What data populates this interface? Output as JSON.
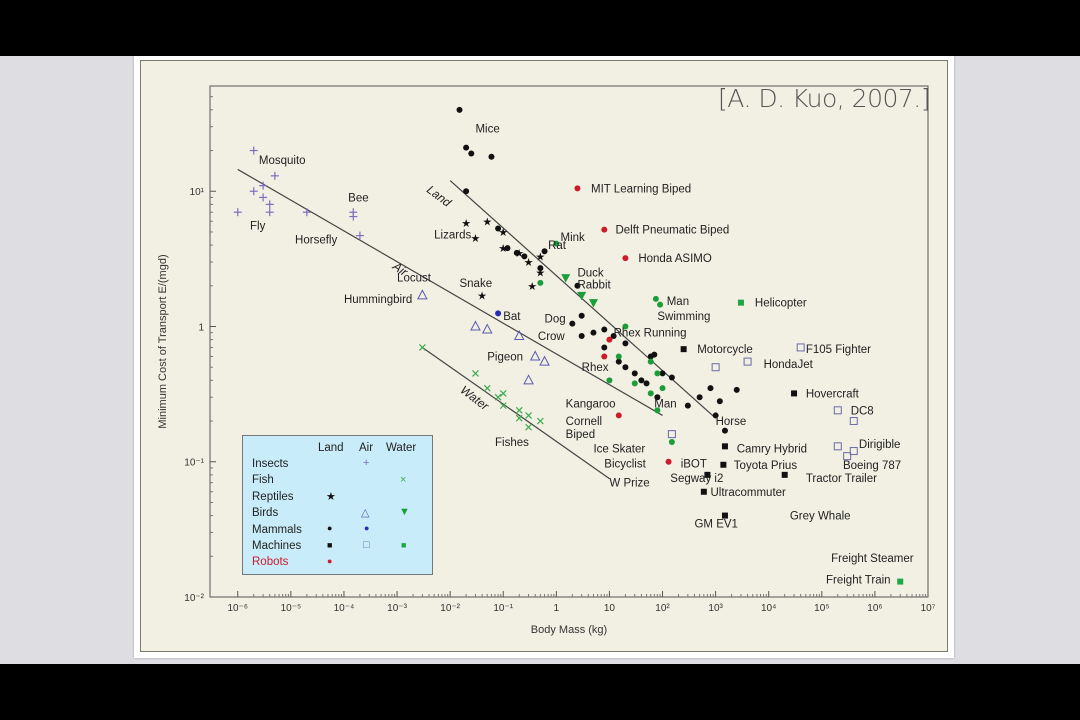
{
  "citation": "[A. D. Kuo, 2007.]",
  "chart_data": {
    "type": "scatter",
    "xlabel": "Body Mass (kg)",
    "ylabel": "Minimum Cost of Transport E/(mgd)",
    "xscale": "log",
    "yscale": "log",
    "xlim": [
      3e-07,
      10000000.0
    ],
    "ylim": [
      0.01,
      60
    ],
    "x_tick_labels": [
      "10⁻⁶",
      "10⁻⁵",
      "10⁻⁴",
      "10⁻³",
      "10⁻²",
      "10⁻¹",
      "1",
      "10",
      "10²",
      "10³",
      "10⁴",
      "10⁵",
      "10⁶",
      "10⁷"
    ],
    "x_tick_values": [
      1e-06,
      1e-05,
      0.0001,
      0.001,
      0.01,
      0.1,
      1,
      10,
      100,
      1000,
      10000.0,
      100000.0,
      1000000.0,
      10000000.0
    ],
    "y_tick_labels": [
      "10⁻²",
      "10⁻¹",
      "1",
      "10¹"
    ],
    "y_tick_values": [
      0.01,
      0.1,
      1,
      10
    ],
    "legend": {
      "headers": [
        "Land",
        "Air",
        "Water"
      ],
      "rows": [
        {
          "label": "Insects",
          "land": "",
          "air": "+",
          "water": ""
        },
        {
          "label": "Fish",
          "land": "",
          "air": "",
          "water": "×"
        },
        {
          "label": "Reptiles",
          "land": "★",
          "air": "",
          "water": ""
        },
        {
          "label": "Birds",
          "land": "",
          "air": "△",
          "water": "▼"
        },
        {
          "label": "Mammals",
          "land": "●",
          "air": "●",
          "water": ""
        },
        {
          "label": "Machines",
          "land": "■",
          "air": "□",
          "water": "■"
        },
        {
          "label": "Robots",
          "land": "●",
          "air": "",
          "water": ""
        }
      ],
      "placement": "bottom-left"
    },
    "trend_lines": [
      {
        "label": "Air",
        "x": [
          1e-06,
          100.0
        ],
        "y": [
          14.5,
          0.22
        ]
      },
      {
        "label": "Land",
        "x": [
          0.01,
          1000.0
        ],
        "y": [
          12,
          0.21
        ]
      },
      {
        "label": "Water",
        "x": [
          0.003,
          10
        ],
        "y": [
          0.7,
          0.075
        ]
      }
    ],
    "colors": {
      "insects": "#7b6fc0",
      "fish": "#3cab50",
      "reptile": "#111111",
      "bird_air": "#5a5ab0",
      "bird_water": "#1b9d3a",
      "mammal": "#111111",
      "mammal_air": "#2a2ab5",
      "machine_land": "#111111",
      "machine_air": "#6a6aa8",
      "machine_water": "#1ea746",
      "robot": "#cc1b2a"
    },
    "series": [
      {
        "name": "Insects",
        "marker": "plus",
        "color": "#7b6fc0",
        "points": [
          [
            2e-06,
            20
          ],
          [
            3e-06,
            11
          ],
          [
            3e-06,
            9
          ],
          [
            4e-06,
            8
          ],
          [
            4e-06,
            7
          ],
          [
            5e-06,
            13
          ],
          [
            1e-06,
            7
          ],
          [
            2e-06,
            10
          ],
          [
            2e-05,
            7
          ],
          [
            0.00015,
            7
          ],
          [
            0.00015,
            6.5
          ],
          [
            0.0002,
            4.7
          ]
        ]
      },
      {
        "name": "Fish",
        "marker": "x",
        "color": "#3cab50",
        "points": [
          [
            0.003,
            0.7
          ],
          [
            0.03,
            0.45
          ],
          [
            0.05,
            0.35
          ],
          [
            0.08,
            0.3
          ],
          [
            0.1,
            0.26
          ],
          [
            0.2,
            0.24
          ],
          [
            0.3,
            0.22
          ],
          [
            0.5,
            0.2
          ],
          [
            0.3,
            0.18
          ],
          [
            0.2,
            0.21
          ],
          [
            0.1,
            0.32
          ]
        ]
      },
      {
        "name": "Reptiles",
        "marker": "star",
        "color": "#111111",
        "points": [
          [
            0.02,
            5.8
          ],
          [
            0.03,
            4.5
          ],
          [
            0.05,
            6
          ],
          [
            0.1,
            5
          ],
          [
            0.1,
            3.8
          ],
          [
            0.2,
            3.5
          ],
          [
            0.3,
            3
          ],
          [
            0.5,
            3.3
          ],
          [
            0.5,
            2.5
          ],
          [
            0.04,
            1.7
          ],
          [
            0.35,
            2
          ]
        ]
      },
      {
        "name": "Birds (Air)",
        "marker": "triangle",
        "color": "#5a5ab0",
        "points": [
          [
            0.003,
            1.7
          ],
          [
            0.03,
            1
          ],
          [
            0.05,
            0.95
          ],
          [
            0.2,
            0.85
          ],
          [
            0.4,
            0.6
          ],
          [
            0.6,
            0.55
          ],
          [
            0.3,
            0.4
          ]
        ]
      },
      {
        "name": "Birds (Water)",
        "marker": "tri-down",
        "color": "#1b9d3a",
        "points": [
          [
            1.5,
            2.3
          ],
          [
            3,
            1.7
          ],
          [
            5,
            1.5
          ]
        ]
      },
      {
        "name": "Mammals (Land)",
        "marker": "dot",
        "color": "#111111",
        "points": [
          [
            0.015,
            40
          ],
          [
            0.02,
            21
          ],
          [
            0.025,
            19
          ],
          [
            0.06,
            18
          ],
          [
            0.02,
            10
          ],
          [
            0.08,
            5.3
          ],
          [
            0.12,
            3.8
          ],
          [
            0.18,
            3.5
          ],
          [
            0.25,
            3.3
          ],
          [
            0.5,
            2.7
          ],
          [
            0.6,
            3.6
          ],
          [
            2.5,
            2
          ],
          [
            3,
            1.2
          ],
          [
            3,
            0.85
          ],
          [
            5,
            0.9
          ],
          [
            8,
            0.95
          ],
          [
            12,
            0.85
          ],
          [
            20,
            0.75
          ],
          [
            2,
            1.05
          ],
          [
            15,
            0.55
          ],
          [
            20,
            0.5
          ],
          [
            30,
            0.45
          ],
          [
            40,
            0.4
          ],
          [
            50,
            0.38
          ],
          [
            60,
            0.6
          ],
          [
            70,
            0.62
          ],
          [
            80,
            0.3
          ],
          [
            100,
            0.45
          ],
          [
            150,
            0.42
          ],
          [
            300,
            0.26
          ],
          [
            500,
            0.3
          ],
          [
            800,
            0.35
          ],
          [
            1000,
            0.22
          ],
          [
            1200,
            0.28
          ],
          [
            1500,
            0.17
          ],
          [
            2500,
            0.34
          ],
          [
            8,
            0.7
          ]
        ]
      },
      {
        "name": "Mammals (Air)",
        "marker": "dot",
        "color": "#2a2ab5",
        "points": [
          [
            0.08,
            1.25
          ]
        ]
      },
      {
        "name": "Mammals (Water)",
        "marker": "dot",
        "color": "#1b9d3a",
        "points": [
          [
            1,
            4.1
          ],
          [
            0.5,
            2.1
          ],
          [
            15,
            0.6
          ],
          [
            30,
            0.38
          ],
          [
            80,
            0.24
          ],
          [
            150,
            0.14
          ],
          [
            10,
            0.4
          ],
          [
            60,
            0.55
          ],
          [
            75,
            1.6
          ],
          [
            90,
            1.45
          ],
          [
            100,
            0.35
          ],
          [
            60,
            0.32
          ],
          [
            80,
            0.45
          ],
          [
            20,
            1.0
          ]
        ]
      },
      {
        "name": "Machines (Land)",
        "marker": "square",
        "color": "#111111",
        "points": [
          [
            250,
            0.68
          ],
          [
            1500,
            0.13
          ],
          [
            1400,
            0.095
          ],
          [
            700,
            0.08
          ],
          [
            600,
            0.06
          ],
          [
            1500,
            0.04
          ],
          [
            30000.0,
            0.32
          ],
          [
            20000.0,
            0.08
          ]
        ]
      },
      {
        "name": "Machines (Air)",
        "marker": "square-open",
        "color": "#6a6aa8",
        "points": [
          [
            40000.0,
            0.7
          ],
          [
            4000,
            0.55
          ],
          [
            200000.0,
            0.24
          ],
          [
            400000.0,
            0.2
          ],
          [
            200000.0,
            0.13
          ],
          [
            400000.0,
            0.12
          ],
          [
            300000.0,
            0.11
          ],
          [
            1000,
            0.5
          ],
          [
            150,
            0.16
          ]
        ]
      },
      {
        "name": "Machines (Water)",
        "marker": "square",
        "color": "#1ea746",
        "points": [
          [
            3000.0,
            1.5
          ],
          [
            3000000.0,
            0.013
          ]
        ]
      },
      {
        "name": "Robots",
        "marker": "dot",
        "color": "#cc1b2a",
        "points": [
          [
            2.5,
            10.5
          ],
          [
            8,
            5.2
          ],
          [
            20,
            3.2
          ],
          [
            10,
            0.8
          ],
          [
            8,
            0.6
          ],
          [
            15,
            0.22
          ],
          [
            130,
            0.1
          ]
        ]
      }
    ],
    "annotations": [
      {
        "text": "Mosquito",
        "x": 2.5e-06,
        "y": 17,
        "anchor": "start"
      },
      {
        "text": "Bee",
        "x": 0.00012,
        "y": 9,
        "anchor": "start"
      },
      {
        "text": "Fly",
        "x": 1.7e-06,
        "y": 5.6,
        "anchor": "start"
      },
      {
        "text": "Horsefly",
        "x": 1.2e-05,
        "y": 4.4,
        "anchor": "start"
      },
      {
        "text": "Mice",
        "x": 0.03,
        "y": 29,
        "anchor": "start"
      },
      {
        "text": "Lizards",
        "x": 0.005,
        "y": 4.8,
        "anchor": "start"
      },
      {
        "text": "Rat",
        "x": 0.7,
        "y": 4.0,
        "anchor": "start"
      },
      {
        "text": "Mink",
        "x": 1.2,
        "y": 4.6,
        "anchor": "start"
      },
      {
        "text": "Locust",
        "x": 0.001,
        "y": 2.3,
        "anchor": "start"
      },
      {
        "text": "Hummingbird",
        "x": 0.0001,
        "y": 1.6,
        "anchor": "start"
      },
      {
        "text": "Snake",
        "x": 0.015,
        "y": 2.1,
        "anchor": "start"
      },
      {
        "text": "Duck",
        "x": 2.5,
        "y": 2.5,
        "anchor": "start"
      },
      {
        "text": "Rabbit",
        "x": 2.5,
        "y": 2.05,
        "anchor": "start"
      },
      {
        "text": "Bat",
        "x": 0.1,
        "y": 1.2,
        "anchor": "start"
      },
      {
        "text": "Dog",
        "x": 0.6,
        "y": 1.15,
        "anchor": "start"
      },
      {
        "text": "Crow",
        "x": 0.45,
        "y": 0.85,
        "anchor": "start"
      },
      {
        "text": "Pigeon",
        "x": 0.05,
        "y": 0.6,
        "anchor": "start"
      },
      {
        "text": "Rhex",
        "x": 3,
        "y": 0.5,
        "anchor": "start"
      },
      {
        "text": "Rhex Running",
        "x": 12,
        "y": 0.9,
        "anchor": "start"
      },
      {
        "text": "Man",
        "x": 120,
        "y": 1.55,
        "anchor": "start"
      },
      {
        "text": "Swimming",
        "x": 80,
        "y": 1.2,
        "anchor": "start"
      },
      {
        "text": "MIT Learning Biped",
        "x": 4.5,
        "y": 10.5,
        "anchor": "start"
      },
      {
        "text": "Delft Pneumatic Biped",
        "x": 13,
        "y": 5.2,
        "anchor": "start"
      },
      {
        "text": "Honda ASIMO",
        "x": 35,
        "y": 3.2,
        "anchor": "start"
      },
      {
        "text": "Helicopter",
        "x": 5500,
        "y": 1.5,
        "anchor": "start"
      },
      {
        "text": "Motorcycle",
        "x": 450,
        "y": 0.68,
        "anchor": "start"
      },
      {
        "text": "F105 Fighter",
        "x": 50000.0,
        "y": 0.68,
        "anchor": "start"
      },
      {
        "text": "HondaJet",
        "x": 8000,
        "y": 0.53,
        "anchor": "start"
      },
      {
        "text": "Kangaroo",
        "x": 1.5,
        "y": 0.27,
        "anchor": "start"
      },
      {
        "text": "Man",
        "x": 70,
        "y": 0.27,
        "anchor": "start"
      },
      {
        "text": "Horse",
        "x": 1000,
        "y": 0.2,
        "anchor": "start"
      },
      {
        "text": "Hovercraft",
        "x": 50000.0,
        "y": 0.32,
        "anchor": "start"
      },
      {
        "text": "DC8",
        "x": 350000.0,
        "y": 0.24,
        "anchor": "start"
      },
      {
        "text": "Cornell",
        "x": 1.5,
        "y": 0.2,
        "anchor": "start"
      },
      {
        "text": "Biped",
        "x": 1.5,
        "y": 0.16,
        "anchor": "start"
      },
      {
        "text": "Fishes",
        "x": 0.07,
        "y": 0.14,
        "anchor": "start"
      },
      {
        "text": "Ice Skater",
        "x": 5,
        "y": 0.125,
        "anchor": "start"
      },
      {
        "text": "Camry Hybrid",
        "x": 2500,
        "y": 0.125,
        "anchor": "start"
      },
      {
        "text": "Dirigible",
        "x": 500000.0,
        "y": 0.135,
        "anchor": "start"
      },
      {
        "text": "Bicyclist",
        "x": 8,
        "y": 0.097,
        "anchor": "start"
      },
      {
        "text": "iBOT",
        "x": 220,
        "y": 0.097,
        "anchor": "start"
      },
      {
        "text": "Toyota Prius",
        "x": 2200,
        "y": 0.095,
        "anchor": "start"
      },
      {
        "text": "Boeing 787",
        "x": 250000.0,
        "y": 0.095,
        "anchor": "start"
      },
      {
        "text": "Segway i2",
        "x": 140,
        "y": 0.076,
        "anchor": "start"
      },
      {
        "text": "Tractor Trailer",
        "x": 50000.0,
        "y": 0.076,
        "anchor": "start"
      },
      {
        "text": "W Prize",
        "x": 10,
        "y": 0.07,
        "anchor": "start"
      },
      {
        "text": "Ultracommuter",
        "x": 800,
        "y": 0.06,
        "anchor": "start"
      },
      {
        "text": "Grey Whale",
        "x": 25000.0,
        "y": 0.04,
        "anchor": "start"
      },
      {
        "text": "GM EV1",
        "x": 400,
        "y": 0.035,
        "anchor": "start"
      },
      {
        "text": "Freight Steamer",
        "x": 150000.0,
        "y": 0.0195,
        "anchor": "start"
      },
      {
        "text": "Freight Train",
        "x": 120000.0,
        "y": 0.0135,
        "anchor": "start"
      }
    ],
    "line_labels": [
      {
        "text": "Air",
        "x": 0.0008,
        "y": 2.7,
        "rotate": 35
      },
      {
        "text": "Land",
        "x": 0.0035,
        "y": 10,
        "rotate": 37
      },
      {
        "text": "Water",
        "x": 0.015,
        "y": 0.33,
        "rotate": 37
      }
    ],
    "grid": false
  }
}
